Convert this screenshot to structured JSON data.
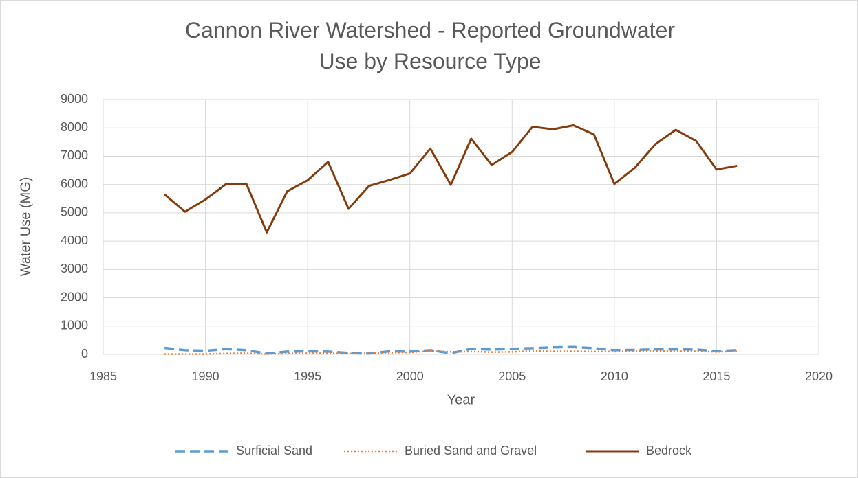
{
  "chart_data": {
    "type": "line",
    "title": "Cannon River Watershed - Reported Groundwater Use by Resource Type",
    "x_label": "Year",
    "y_label": "Water Use (MG)",
    "x": [
      1988,
      1989,
      1990,
      1991,
      1992,
      1993,
      1994,
      1995,
      1996,
      1997,
      1998,
      1999,
      2000,
      2001,
      2002,
      2003,
      2004,
      2005,
      2006,
      2007,
      2008,
      2009,
      2010,
      2011,
      2012,
      2013,
      2014,
      2015,
      2016
    ],
    "series": [
      {
        "name": "Surficial Sand",
        "color": "#5b9bd5",
        "dash": "dashed",
        "values": [
          230,
          150,
          130,
          190,
          150,
          30,
          100,
          110,
          100,
          50,
          30,
          110,
          100,
          150,
          40,
          200,
          170,
          200,
          220,
          250,
          260,
          220,
          150,
          160,
          180,
          180,
          170,
          120,
          150
        ]
      },
      {
        "name": "Buried Sand and Gravel",
        "color": "#ed7d31",
        "dash": "dotted",
        "values": [
          10,
          10,
          10,
          30,
          40,
          10,
          30,
          40,
          40,
          30,
          40,
          60,
          70,
          120,
          90,
          100,
          80,
          90,
          120,
          110,
          110,
          100,
          100,
          110,
          120,
          110,
          110,
          90,
          110
        ]
      },
      {
        "name": "Bedrock",
        "color": "#843c0c",
        "dash": "solid",
        "values": [
          5650,
          5040,
          5470,
          6010,
          6030,
          4310,
          5760,
          6150,
          6800,
          5140,
          5950,
          6160,
          6390,
          7270,
          5990,
          7620,
          6690,
          7150,
          8040,
          7950,
          8090,
          7770,
          6020,
          6590,
          7420,
          7930,
          7540,
          6530,
          6660
        ]
      }
    ],
    "xlim": [
      1985,
      2020
    ],
    "xticks": [
      1985,
      1990,
      1995,
      2000,
      2005,
      2010,
      2015,
      2020
    ],
    "ylim": [
      0,
      9000
    ],
    "yticks": [
      0,
      1000,
      2000,
      3000,
      4000,
      5000,
      6000,
      7000,
      8000,
      9000
    ],
    "grid": true,
    "legend": "bottom"
  }
}
